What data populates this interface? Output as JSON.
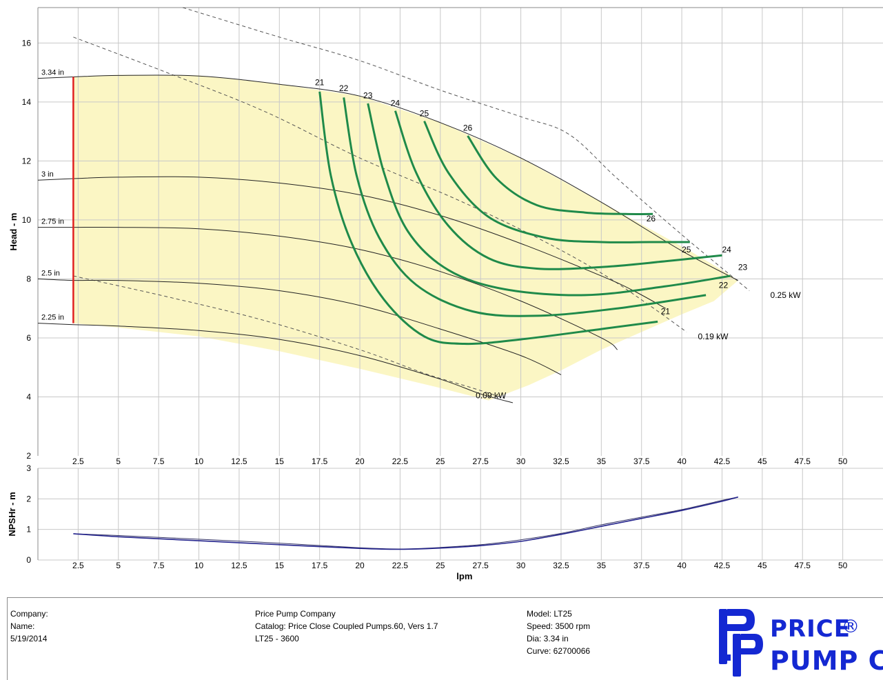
{
  "colors": {
    "envelope_fill": "#fbf6c4",
    "efficiency": "#1f8a4a",
    "npsh": "#23238c",
    "impeller_line": "#e02020",
    "grid": "#c8c8c8",
    "logo": "#1428d2"
  },
  "chart_data": [
    {
      "type": "line",
      "xlim": [
        0,
        52.5
      ],
      "ylim": [
        2,
        17.2
      ],
      "xticks": [
        2.5,
        5,
        7.5,
        10,
        12.5,
        15,
        17.5,
        20,
        22.5,
        25,
        27.5,
        30,
        32.5,
        35,
        37.5,
        40,
        42.5,
        45,
        47.5,
        50
      ],
      "yticks": [
        2,
        4,
        6,
        8,
        10,
        12,
        14,
        16
      ],
      "ylabel": "Head - m",
      "grid": true,
      "envelope": [
        [
          2.2,
          6.5
        ],
        [
          2.2,
          14.85
        ],
        [
          5,
          14.92
        ],
        [
          10,
          14.9
        ],
        [
          15,
          14.6
        ],
        [
          20,
          14.2
        ],
        [
          25,
          13.3
        ],
        [
          30,
          12.1
        ],
        [
          35,
          10.6
        ],
        [
          38.5,
          9.55
        ],
        [
          40.5,
          8.95
        ],
        [
          42.5,
          8.3
        ],
        [
          43.5,
          7.95
        ],
        [
          42,
          7.25
        ],
        [
          40,
          6.8
        ],
        [
          37.5,
          6.2
        ],
        [
          35,
          5.6
        ],
        [
          32.5,
          4.9
        ],
        [
          30.5,
          4.4
        ],
        [
          28,
          3.88
        ],
        [
          25,
          4.3
        ],
        [
          20,
          4.95
        ],
        [
          15,
          5.55
        ],
        [
          10,
          6.05
        ],
        [
          5,
          6.35
        ],
        [
          2.2,
          6.5
        ]
      ],
      "max_impeller_line": {
        "x": 2.2,
        "y": [
          6.5,
          14.85
        ]
      },
      "series": [
        {
          "name": "3.34 in",
          "label": "3.34 in",
          "x": [
            0,
            2.2,
            5,
            10,
            15,
            20,
            25,
            30,
            35,
            40,
            43.5
          ],
          "y": [
            14.8,
            14.85,
            14.9,
            14.88,
            14.6,
            14.2,
            13.3,
            12.1,
            10.6,
            8.95,
            7.95
          ]
        },
        {
          "name": "3 in",
          "label": "3 in",
          "x": [
            0,
            2.2,
            5,
            10,
            15,
            20,
            25,
            30,
            35,
            37,
            39
          ],
          "y": [
            11.35,
            11.4,
            11.45,
            11.45,
            11.25,
            10.85,
            10.15,
            9.2,
            8.1,
            7.6,
            7.0
          ]
        },
        {
          "name": "2.75 in",
          "label": "2.75 in",
          "x": [
            0,
            2.2,
            5,
            10,
            15,
            20,
            25,
            30,
            35,
            36
          ],
          "y": [
            9.75,
            9.75,
            9.75,
            9.7,
            9.45,
            9.0,
            8.25,
            7.25,
            6.0,
            5.6
          ]
        },
        {
          "name": "2.5 in",
          "label": "2.5 in",
          "x": [
            0,
            2.2,
            5,
            10,
            15,
            20,
            25,
            30,
            32.5
          ],
          "y": [
            8.0,
            7.95,
            7.95,
            7.85,
            7.6,
            7.1,
            6.3,
            5.4,
            4.75
          ]
        },
        {
          "name": "2.25 in",
          "label": "2.25 in",
          "x": [
            0,
            2.2,
            5,
            10,
            15,
            20,
            25,
            27.5,
            29.5
          ],
          "y": [
            6.5,
            6.45,
            6.4,
            6.25,
            5.95,
            5.4,
            4.6,
            4.1,
            3.8
          ]
        }
      ],
      "efficiency_curves": [
        {
          "label": "21",
          "x": [
            17.5,
            18.2,
            19.5,
            21.5,
            24,
            26.5,
            30,
            35,
            38.5
          ],
          "y": [
            14.35,
            11.5,
            9.2,
            7.3,
            6.05,
            5.8,
            5.95,
            6.3,
            6.55
          ]
        },
        {
          "label": "22",
          "x": [
            19.0,
            19.8,
            21.2,
            23.5,
            27,
            31,
            36,
            41.5
          ],
          "y": [
            14.15,
            11.5,
            9.4,
            7.8,
            6.9,
            6.75,
            7.0,
            7.45
          ]
        },
        {
          "label": "23",
          "x": [
            20.5,
            21.5,
            23,
            25.5,
            29,
            34,
            39,
            43
          ],
          "y": [
            13.95,
            11.6,
            9.6,
            8.3,
            7.65,
            7.45,
            7.75,
            8.1
          ]
        },
        {
          "label": "24",
          "x": [
            22.2,
            23.5,
            25.5,
            28,
            31,
            35,
            39,
            42.5
          ],
          "y": [
            13.7,
            11.6,
            9.8,
            8.7,
            8.35,
            8.4,
            8.6,
            8.8
          ]
        },
        {
          "label": "25",
          "x": [
            24.0,
            25.5,
            28,
            31.5,
            35,
            38,
            40.5
          ],
          "y": [
            13.35,
            11.6,
            10.1,
            9.4,
            9.25,
            9.25,
            9.25
          ]
        },
        {
          "label": "26",
          "x": [
            26.7,
            28.5,
            31,
            34,
            36.5,
            38.2
          ],
          "y": [
            12.85,
            11.4,
            10.5,
            10.25,
            10.2,
            10.2
          ]
        }
      ],
      "efficiency_end_labels": [
        {
          "label": "26",
          "x": 37.8,
          "y": 9.95
        },
        {
          "label": "25",
          "x": 40.0,
          "y": 8.9
        },
        {
          "label": "24",
          "x": 42.5,
          "y": 8.9
        },
        {
          "label": "23",
          "x": 43.5,
          "y": 8.3
        },
        {
          "label": "22",
          "x": 42.3,
          "y": 7.7
        },
        {
          "label": "21",
          "x": 38.7,
          "y": 6.8
        }
      ],
      "efficiency_top_labels": [
        {
          "label": "21",
          "x": 17.5,
          "y": 14.5
        },
        {
          "label": "22",
          "x": 19.0,
          "y": 14.3
        },
        {
          "label": "23",
          "x": 20.5,
          "y": 14.05
        },
        {
          "label": "24",
          "x": 22.2,
          "y": 13.8
        },
        {
          "label": "25",
          "x": 24.0,
          "y": 13.45
        },
        {
          "label": "26",
          "x": 26.7,
          "y": 12.95
        }
      ],
      "power_lines": [
        {
          "label": "0.25 kW",
          "x": [
            9,
            15,
            20,
            25,
            30,
            33,
            36,
            40,
            44.2
          ],
          "y": [
            17.2,
            16.2,
            15.4,
            14.4,
            13.5,
            12.9,
            11.4,
            9.5,
            7.6
          ],
          "label_at": [
            45.5,
            7.35
          ]
        },
        {
          "label": "0.19 kW",
          "x": [
            2.2,
            8,
            14,
            20,
            26,
            31,
            35,
            38,
            40.3
          ],
          "y": [
            16.2,
            15,
            13.7,
            12.1,
            10.7,
            9.4,
            8.2,
            7.1,
            6.2
          ],
          "label_at": [
            41.0,
            5.95
          ]
        },
        {
          "label": "0.09 kW",
          "x": [
            2.2,
            8,
            14,
            20,
            24,
            27,
            29
          ],
          "y": [
            8.1,
            7.4,
            6.6,
            5.6,
            4.8,
            4.3,
            3.95
          ],
          "label_at": [
            27.2,
            3.95
          ]
        }
      ]
    },
    {
      "type": "line",
      "xlim": [
        0,
        52.5
      ],
      "ylim": [
        0,
        3
      ],
      "xticks": [
        2.5,
        5,
        7.5,
        10,
        12.5,
        15,
        17.5,
        20,
        22.5,
        25,
        27.5,
        30,
        32.5,
        35,
        37.5,
        40,
        42.5,
        45,
        47.5,
        50
      ],
      "yticks": [
        0,
        1,
        2,
        3
      ],
      "xlabel": "lpm",
      "ylabel": "NPSHr - m",
      "grid": true,
      "series": [
        {
          "x": [
            2.2,
            5,
            10,
            15,
            20,
            22.5,
            25,
            27.5,
            30,
            32.5,
            35,
            37.5,
            40,
            42.5,
            43.5
          ],
          "y": [
            0.86,
            0.8,
            0.68,
            0.55,
            0.4,
            0.36,
            0.41,
            0.5,
            0.66,
            0.87,
            1.15,
            1.4,
            1.65,
            1.95,
            2.06
          ]
        },
        {
          "x": [
            2.2,
            5,
            10,
            15,
            20,
            22.5,
            25,
            27.5,
            30,
            32.5,
            35,
            37.5,
            40,
            42.5,
            43.5
          ],
          "y": [
            0.86,
            0.76,
            0.63,
            0.5,
            0.38,
            0.35,
            0.39,
            0.47,
            0.61,
            0.84,
            1.1,
            1.36,
            1.62,
            1.92,
            2.06
          ]
        }
      ]
    }
  ],
  "footer": {
    "col1": [
      "Company:",
      "Name:",
      "5/19/2014"
    ],
    "col2": [
      "Price Pump Company",
      "Catalog: Price Close Coupled Pumps.60, Vers 1.7",
      "LT25 - 3600"
    ],
    "col3": [
      "Model: LT25",
      "Speed: 3500 rpm",
      "Dia: 3.34 in",
      "Curve: 62700066"
    ],
    "logo": {
      "line1": "PRICE",
      "registered": "®",
      "line2": "PUMP CO"
    }
  }
}
